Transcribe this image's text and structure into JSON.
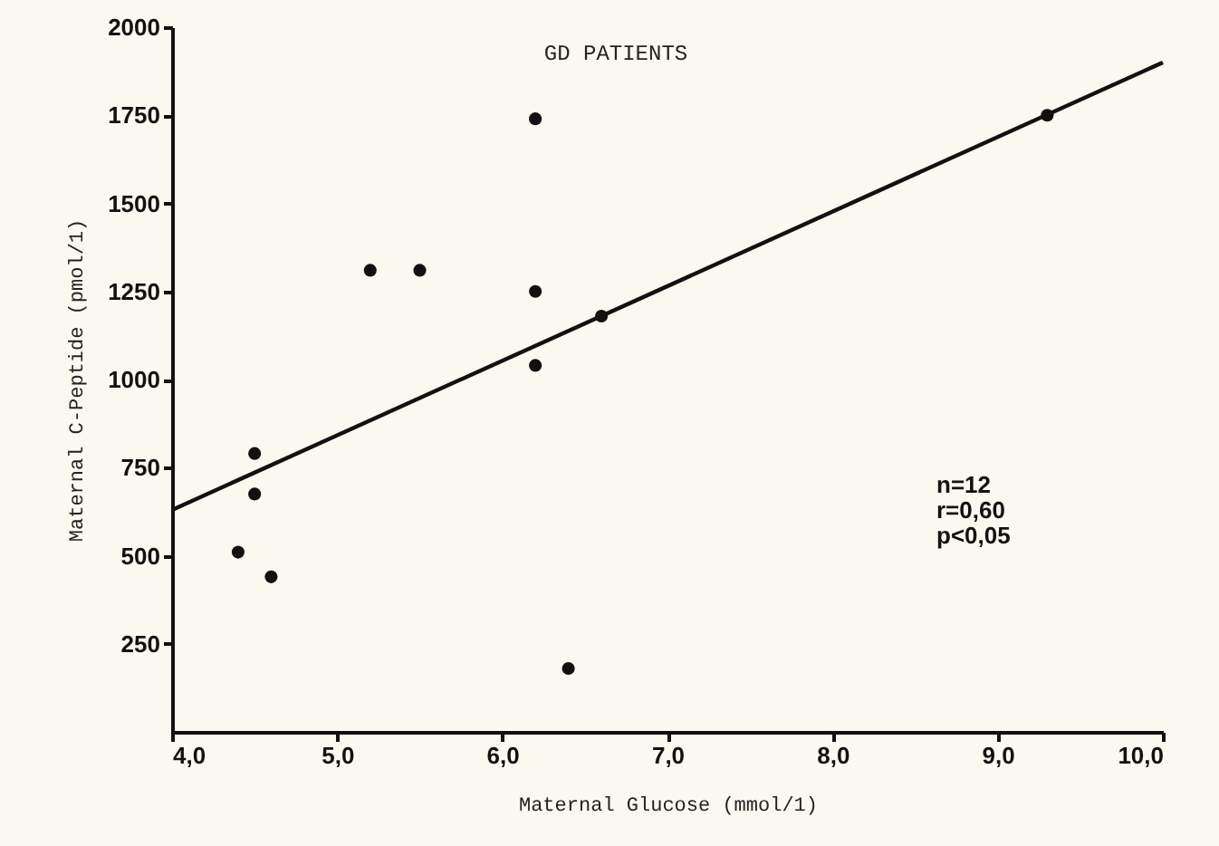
{
  "chart_data": {
    "type": "scatter",
    "title": "GD PATIENTS",
    "xlabel": "Maternal Glucose (mmol/1)",
    "ylabel": "Maternal C-Peptide (pmol/1)",
    "annotations": [
      "n=12",
      "r=0,60",
      "p<0,05"
    ],
    "series": [
      {
        "marker": "circle",
        "color": "#111111",
        "x": [
          4.4,
          4.5,
          4.5,
          4.6,
          5.2,
          5.5,
          6.2,
          6.2,
          6.2,
          6.6,
          6.4,
          9.3
        ],
        "values": [
          510,
          790,
          675,
          440,
          1310,
          1310,
          1740,
          1250,
          1040,
          1180,
          180,
          1750
        ]
      },
      {
        "type": "line",
        "color": "#111111",
        "x": [
          4.0,
          10.0
        ],
        "values": [
          630,
          1900
        ]
      }
    ],
    "xlim": [
      4,
      10
    ],
    "ylim": [
      0,
      2000
    ],
    "xticks": [
      {
        "value": 4,
        "label": "4,0"
      },
      {
        "value": 5,
        "label": "5,0"
      },
      {
        "value": 6,
        "label": "6,0"
      },
      {
        "value": 7,
        "label": "7,0"
      },
      {
        "value": 8,
        "label": "8,0"
      },
      {
        "value": 9,
        "label": "9,0"
      },
      {
        "value": 10,
        "label": "10,0"
      }
    ],
    "yticks": [
      250,
      500,
      750,
      1000,
      1250,
      1500,
      1750,
      2000
    ]
  }
}
